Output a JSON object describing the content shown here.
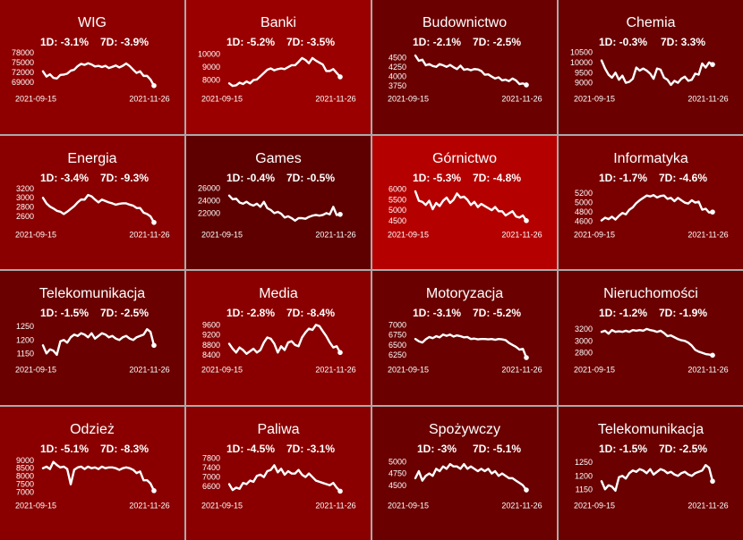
{
  "chart_data": [
    {
      "type": "line",
      "title": "WIG",
      "change_1d": "1D: -3.1%",
      "change_7d": "7D: -3.9%",
      "color": "#8e0000",
      "x_start": "2021-09-15",
      "x_end": "2021-11-26",
      "yticks": [
        69000,
        72000,
        75000,
        78000
      ],
      "ylim": [
        67200,
        78800
      ],
      "values": [
        72300,
        70700,
        71400,
        70300,
        70100,
        71200,
        71300,
        71600,
        72500,
        72800,
        73900,
        74600,
        74300,
        74800,
        74400,
        73800,
        74000,
        73600,
        74000,
        73300,
        73700,
        74100,
        73500,
        74000,
        74700,
        73900,
        72800,
        71800,
        72300,
        70900,
        70900,
        69800,
        67900
      ]
    },
    {
      "type": "line",
      "title": "Banki",
      "change_1d": "1D: -5.2%",
      "change_7d": "7D: -3.5%",
      "color": "#9a0000",
      "x_start": "2021-09-15",
      "x_end": "2021-11-26",
      "yticks": [
        8000,
        9000,
        10000
      ],
      "ylim": [
        7400,
        10300
      ],
      "values": [
        7750,
        7550,
        7600,
        7800,
        7700,
        7900,
        7750,
        8000,
        8050,
        8300,
        8550,
        8800,
        8900,
        8750,
        8850,
        8900,
        8850,
        9000,
        9150,
        9150,
        9400,
        9700,
        9550,
        9300,
        9700,
        9500,
        9350,
        9200,
        8700,
        8700,
        8850,
        8550,
        8250
      ]
    },
    {
      "type": "line",
      "title": "Budownictwo",
      "change_1d": "1D: -2.1%",
      "change_7d": "7D: -2.5%",
      "color": "#6a0000",
      "x_start": "2021-09-15",
      "x_end": "2021-11-26",
      "yticks": [
        3750,
        4000,
        4250,
        4500
      ],
      "ylim": [
        3700,
        4700
      ],
      "values": [
        4560,
        4420,
        4450,
        4300,
        4330,
        4280,
        4260,
        4330,
        4300,
        4260,
        4310,
        4250,
        4200,
        4290,
        4180,
        4200,
        4170,
        4200,
        4190,
        4150,
        4050,
        4060,
        4000,
        3950,
        3980,
        3900,
        3920,
        3880,
        3950,
        3900,
        3800,
        3820,
        3780
      ]
    },
    {
      "type": "line",
      "title": "Chemia",
      "change_1d": "1D: -0.3%",
      "change_7d": "7D: 3.3%",
      "color": "#6a0000",
      "x_start": "2021-09-15",
      "x_end": "2021-11-26",
      "yticks": [
        9000,
        9500,
        10000,
        10500
      ],
      "ylim": [
        8750,
        10600
      ],
      "values": [
        10100,
        9700,
        9400,
        9250,
        9500,
        9150,
        9350,
        9000,
        9050,
        9200,
        9750,
        9600,
        9700,
        9600,
        9450,
        9200,
        9700,
        9650,
        9250,
        9150,
        8900,
        9100,
        9000,
        9200,
        9300,
        9100,
        9150,
        9450,
        9400,
        9950,
        9750,
        10000,
        9900
      ]
    },
    {
      "type": "line",
      "title": "Energia",
      "change_1d": "1D: -3.4%",
      "change_7d": "7D: -9.3%",
      "color": "#8a0000",
      "x_start": "2021-09-15",
      "x_end": "2021-11-26",
      "yticks": [
        2600,
        2800,
        3000,
        3200
      ],
      "ylim": [
        2440,
        3250
      ],
      "values": [
        3000,
        2880,
        2810,
        2770,
        2720,
        2700,
        2650,
        2700,
        2760,
        2820,
        2900,
        2960,
        2960,
        3060,
        3030,
        2960,
        2900,
        2960,
        2930,
        2900,
        2880,
        2850,
        2870,
        2880,
        2880,
        2850,
        2830,
        2780,
        2780,
        2680,
        2650,
        2600,
        2470
      ]
    },
    {
      "type": "line",
      "title": "Games",
      "change_1d": "1D: -0.4%",
      "change_7d": "7D: -0.5%",
      "color": "#5e0000",
      "x_start": "2021-09-15",
      "x_end": "2021-11-26",
      "yticks": [
        22000,
        24000,
        26000
      ],
      "ylim": [
        20300,
        26300
      ],
      "values": [
        24800,
        24200,
        24300,
        23700,
        23500,
        23800,
        23400,
        23200,
        23500,
        23000,
        23800,
        22800,
        22500,
        22000,
        22200,
        21900,
        21300,
        21500,
        21200,
        20800,
        21200,
        21200,
        21100,
        21400,
        21600,
        21700,
        21600,
        21700,
        22000,
        21800,
        23000,
        21700,
        21800
      ]
    },
    {
      "type": "line",
      "title": "Górnictwo",
      "change_1d": "1D: -5.3%",
      "change_7d": "7D: -4.8%",
      "color": "#b50000",
      "x_start": "2021-09-15",
      "x_end": "2021-11-26",
      "yticks": [
        4500,
        5000,
        5500,
        6000
      ],
      "ylim": [
        4350,
        6150
      ],
      "values": [
        5900,
        5450,
        5400,
        5250,
        5450,
        5050,
        5350,
        5200,
        5450,
        5600,
        5350,
        5500,
        5800,
        5600,
        5650,
        5500,
        5250,
        5400,
        5150,
        5300,
        5200,
        5100,
        5000,
        5150,
        4950,
        4950,
        4750,
        4850,
        4950,
        4700,
        4650,
        4750,
        4500
      ]
    },
    {
      "type": "line",
      "title": "Informatyka",
      "change_1d": "1D: -1.7%",
      "change_7d": "7D: -4.6%",
      "color": "#7a0000",
      "x_start": "2021-09-15",
      "x_end": "2021-11-26",
      "yticks": [
        4600,
        4800,
        5000,
        5200
      ],
      "ylim": [
        4550,
        5350
      ],
      "values": [
        4620,
        4680,
        4650,
        4700,
        4640,
        4720,
        4780,
        4750,
        4850,
        4900,
        4990,
        5050,
        5100,
        5150,
        5130,
        5160,
        5110,
        5140,
        5150,
        5080,
        5100,
        5030,
        5100,
        5050,
        5000,
        4980,
        5050,
        5000,
        5020,
        4850,
        4870,
        4790,
        4800
      ]
    },
    {
      "type": "line",
      "title": "Telekomunikacja",
      "change_1d": "1D: -1.5%",
      "change_7d": "7D: -2.5%",
      "color": "#6a0000",
      "x_start": "2021-09-15",
      "x_end": "2021-11-26",
      "yticks": [
        1150,
        1200,
        1250
      ],
      "ylim": [
        1130,
        1270
      ],
      "values": [
        1180,
        1150,
        1165,
        1160,
        1145,
        1195,
        1200,
        1190,
        1210,
        1220,
        1215,
        1225,
        1220,
        1210,
        1225,
        1205,
        1215,
        1225,
        1220,
        1210,
        1215,
        1205,
        1200,
        1210,
        1215,
        1205,
        1200,
        1210,
        1215,
        1220,
        1240,
        1230,
        1180
      ]
    },
    {
      "type": "line",
      "title": "Media",
      "change_1d": "1D: -2.8%",
      "change_7d": "7D: -8.4%",
      "color": "#8a0000",
      "x_start": "2021-09-15",
      "x_end": "2021-11-26",
      "yticks": [
        8400,
        8800,
        9200,
        9600
      ],
      "ylim": [
        8250,
        9750
      ],
      "values": [
        8850,
        8650,
        8500,
        8700,
        8600,
        8450,
        8550,
        8650,
        8500,
        8600,
        8900,
        9100,
        9050,
        8850,
        8500,
        8750,
        8600,
        8900,
        8950,
        8800,
        8750,
        9100,
        9300,
        9450,
        9400,
        9600,
        9550,
        9350,
        9150,
        8900,
        8700,
        8750,
        8500
      ]
    },
    {
      "type": "line",
      "title": "Motoryzacja",
      "change_1d": "1D: -3.1%",
      "change_7d": "7D: -5.2%",
      "color": "#6a0000",
      "x_start": "2021-09-15",
      "x_end": "2021-11-26",
      "yticks": [
        6250,
        6500,
        6750,
        7000
      ],
      "ylim": [
        6150,
        7100
      ],
      "values": [
        6650,
        6590,
        6560,
        6640,
        6700,
        6670,
        6720,
        6690,
        6760,
        6730,
        6760,
        6710,
        6740,
        6720,
        6690,
        6700,
        6650,
        6660,
        6640,
        6650,
        6650,
        6640,
        6650,
        6630,
        6650,
        6640,
        6620,
        6550,
        6500,
        6450,
        6380,
        6400,
        6180
      ]
    },
    {
      "type": "line",
      "title": "Nieruchomości",
      "change_1d": "1D: -1.2%",
      "change_7d": "7D: -1.9%",
      "color": "#6a0000",
      "x_start": "2021-09-15",
      "x_end": "2021-11-26",
      "yticks": [
        2800,
        3000,
        3200
      ],
      "ylim": [
        2700,
        3330
      ],
      "values": [
        3150,
        3170,
        3120,
        3180,
        3150,
        3160,
        3150,
        3170,
        3150,
        3180,
        3170,
        3180,
        3170,
        3200,
        3180,
        3170,
        3150,
        3170,
        3130,
        3080,
        3090,
        3060,
        3030,
        3010,
        3000,
        2970,
        2920,
        2850,
        2820,
        2800,
        2780,
        2770,
        2760
      ]
    },
    {
      "type": "line",
      "title": "Odzież",
      "change_1d": "1D: -5.1%",
      "change_7d": "7D: -8.3%",
      "color": "#8a0000",
      "x_start": "2021-09-15",
      "x_end": "2021-11-26",
      "yticks": [
        7000,
        7500,
        8000,
        8500,
        9000
      ],
      "ylim": [
        6850,
        9200
      ],
      "values": [
        8500,
        8600,
        8450,
        8900,
        8700,
        8550,
        8600,
        8450,
        7500,
        8400,
        8550,
        8600,
        8450,
        8600,
        8500,
        8550,
        8450,
        8600,
        8500,
        8550,
        8550,
        8500,
        8400,
        8500,
        8550,
        8500,
        8400,
        8200,
        8300,
        7750,
        7750,
        7550,
        7100
      ]
    },
    {
      "type": "line",
      "title": "Paliwa",
      "change_1d": "1D: -4.5%",
      "change_7d": "7D: -3.1%",
      "color": "#8a0000",
      "x_start": "2021-09-15",
      "x_end": "2021-11-26",
      "yticks": [
        6600,
        7000,
        7400,
        7800
      ],
      "ylim": [
        6250,
        7850
      ],
      "values": [
        6700,
        6450,
        6550,
        6500,
        6750,
        6700,
        6850,
        6800,
        7050,
        7100,
        7000,
        7250,
        7300,
        7500,
        7200,
        7350,
        7100,
        7250,
        7150,
        7150,
        7300,
        7100,
        7000,
        7150,
        7000,
        6850,
        6800,
        6750,
        6700,
        6650,
        6750,
        6550,
        6400
      ]
    },
    {
      "type": "line",
      "title": "Spożywczy",
      "change_1d": "1D: -3%",
      "change_7d": "7D: -5.1%",
      "color": "#6a0000",
      "x_start": "2021-09-15",
      "x_end": "2021-11-26",
      "yticks": [
        4500,
        4750,
        5000
      ],
      "ylim": [
        4300,
        5100
      ],
      "values": [
        4650,
        4800,
        4600,
        4700,
        4750,
        4700,
        4850,
        4800,
        4900,
        4850,
        4950,
        4900,
        4900,
        4850,
        4950,
        4850,
        4900,
        4850,
        4800,
        4850,
        4800,
        4850,
        4750,
        4800,
        4700,
        4750,
        4700,
        4650,
        4650,
        4600,
        4550,
        4500,
        4400
      ]
    },
    {
      "type": "line",
      "title": "Telekomunikacja",
      "change_1d": "1D: -1.5%",
      "change_7d": "7D: -2.5%",
      "color": "#6a0000",
      "x_start": "2021-09-15",
      "x_end": "2021-11-26",
      "yticks": [
        1150,
        1200,
        1250
      ],
      "ylim": [
        1130,
        1270
      ],
      "values": [
        1180,
        1150,
        1165,
        1160,
        1145,
        1195,
        1200,
        1190,
        1210,
        1220,
        1215,
        1225,
        1220,
        1210,
        1225,
        1205,
        1215,
        1225,
        1220,
        1210,
        1215,
        1205,
        1200,
        1210,
        1215,
        1205,
        1200,
        1210,
        1215,
        1220,
        1240,
        1230,
        1180
      ]
    }
  ]
}
